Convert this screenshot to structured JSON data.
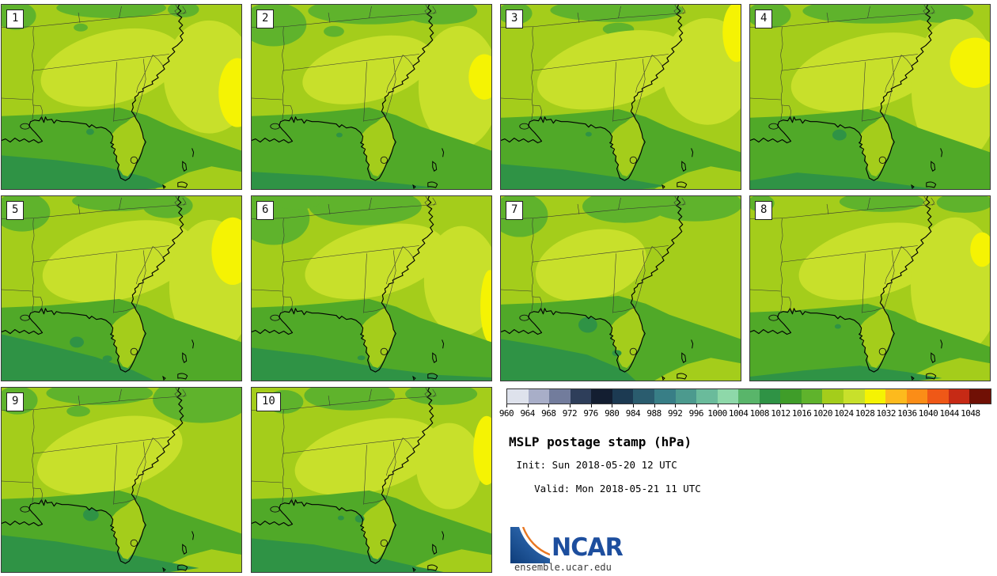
{
  "title_block": {
    "title": "MSLP postage stamp (hPa)",
    "init_line": " Init: Sun 2018-05-20 12 UTC",
    "valid_line": "Valid: Mon 2018-05-21 11 UTC"
  },
  "footer": {
    "logo_text": "NCAR",
    "url": "ensemble.ucar.edu"
  },
  "colorbar": {
    "tick_labels": [
      "960",
      "964",
      "968",
      "972",
      "976",
      "980",
      "984",
      "988",
      "992",
      "996",
      "1000",
      "1004",
      "1008",
      "1012",
      "1016",
      "1020",
      "1024",
      "1028",
      "1032",
      "1036",
      "1040",
      "1044",
      "1048"
    ],
    "segment_colors": [
      "#dee2ec",
      "#a8aec8",
      "#727c9c",
      "#2e3e5a",
      "#131e31",
      "#1c3a52",
      "#2a5c6e",
      "#387e86",
      "#4c9a8e",
      "#6abb9b",
      "#8ed8a9",
      "#59b56a",
      "#2f9345",
      "#3f9d29",
      "#5fb32c",
      "#a4cd1b",
      "#c8e02b",
      "#f5f303",
      "#fdba1d",
      "#fb8d17",
      "#ef5817",
      "#c62a15",
      "#701005"
    ]
  },
  "map_palette": {
    "dominant": "#a4cd1b",
    "light": "#c8e02b",
    "yellow": "#f5f303",
    "grass": "#5fb32c",
    "band": "#50a928",
    "dark": "#2f9345",
    "teal": "#2f9345",
    "coast": "#000000",
    "border_line": "#333333"
  },
  "panels": [
    {
      "number": "1",
      "g": [
        [
          18,
          14,
          26,
          18
        ],
        [
          140,
          4,
          70,
          13
        ],
        [
          101,
          29,
          9,
          5
        ],
        [
          232,
          6,
          20,
          10
        ]
      ],
      "l": [
        [
          140,
          80,
          92,
          46,
          -14
        ],
        [
          265,
          92,
          58,
          72,
          0
        ]
      ],
      "y": [
        [
          301,
          112,
          24,
          44
        ]
      ],
      "bandDy": 0,
      "corner": true,
      "d": [
        [
          0,
          192
        ],
        [
          70,
          198
        ],
        [
          130,
          206
        ],
        [
          185,
          220
        ],
        [
          210,
          232
        ],
        [
          185,
          235
        ],
        [
          0,
          235
        ]
      ],
      "t": [
        [
          113,
          162,
          5,
          4
        ]
      ]
    },
    {
      "number": "2",
      "g": [
        [
          28,
          25,
          42,
          28
        ],
        [
          150,
          8,
          78,
          17
        ],
        [
          105,
          34,
          13,
          7
        ],
        [
          240,
          8,
          48,
          17
        ]
      ],
      "l": [
        [
          148,
          83,
          85,
          40,
          -14
        ],
        [
          265,
          105,
          52,
          78,
          0
        ]
      ],
      "y": [
        [
          297,
          92,
          20,
          29
        ]
      ],
      "bandDy": 0,
      "corner": false,
      "d": [
        [
          0,
          213
        ],
        [
          90,
          218
        ],
        [
          170,
          226
        ],
        [
          235,
          233
        ],
        [
          200,
          235
        ],
        [
          0,
          235
        ]
      ],
      "t": [
        [
          112,
          166,
          4,
          3
        ]
      ]
    },
    {
      "number": "3",
      "g": [
        [
          18,
          11,
          22,
          14
        ],
        [
          148,
          7,
          85,
          15
        ],
        [
          150,
          31,
          20,
          8
        ]
      ],
      "l": [
        [
          142,
          83,
          98,
          46,
          -14
        ],
        [
          264,
          85,
          58,
          68,
          0
        ]
      ],
      "y": [
        [
          301,
          35,
          18,
          38
        ]
      ],
      "bandDy": 2,
      "corner": true,
      "d": [
        [
          0,
          203
        ],
        [
          80,
          210
        ],
        [
          150,
          220
        ],
        [
          210,
          231
        ],
        [
          180,
          235
        ],
        [
          0,
          235
        ]
      ],
      "t": [
        [
          112,
          165,
          4,
          3
        ]
      ]
    },
    {
      "number": "4",
      "g": [
        [
          24,
          13,
          28,
          17
        ],
        [
          155,
          8,
          88,
          16
        ],
        [
          245,
          10,
          40,
          13
        ]
      ],
      "l": [
        [
          148,
          86,
          98,
          46,
          -14
        ],
        [
          262,
          110,
          56,
          92,
          0
        ]
      ],
      "y": [
        [
          287,
          74,
          32,
          32
        ]
      ],
      "bandDy": 2,
      "corner": false,
      "d": [
        [
          0,
          224
        ],
        [
          60,
          214
        ],
        [
          130,
          220
        ],
        [
          200,
          230
        ],
        [
          235,
          235
        ],
        [
          0,
          235
        ]
      ],
      "t": [
        [
          114,
          166,
          9,
          7
        ]
      ]
    },
    {
      "number": "5",
      "g": [
        [
          26,
          20,
          36,
          25
        ],
        [
          148,
          6,
          58,
          13
        ],
        [
          212,
          12,
          32,
          16
        ]
      ],
      "l": [
        [
          150,
          83,
          100,
          48,
          -14
        ],
        [
          268,
          115,
          54,
          85,
          0
        ]
      ],
      "y": [
        [
          295,
          70,
          27,
          43
        ]
      ],
      "bandDy": 0,
      "corner": false,
      "d": [
        [
          0,
          176
        ],
        [
          60,
          190
        ],
        [
          120,
          205
        ],
        [
          168,
          222
        ],
        [
          195,
          235
        ],
        [
          0,
          235
        ]
      ],
      "t": [
        [
          96,
          186,
          9,
          7
        ],
        [
          135,
          207,
          6,
          4
        ]
      ]
    },
    {
      "number": "6",
      "g": [
        [
          28,
          28,
          46,
          34
        ],
        [
          145,
          13,
          72,
          24
        ],
        [
          58,
          6,
          30,
          11
        ]
      ],
      "l": [
        [
          158,
          83,
          92,
          44,
          -14
        ],
        [
          268,
          108,
          48,
          70,
          0
        ]
      ],
      "y": [
        [
          304,
          140,
          12,
          46
        ]
      ],
      "bandDy": 0,
      "corner": false,
      "d": [
        [
          0,
          193
        ],
        [
          80,
          203
        ],
        [
          160,
          218
        ],
        [
          240,
          228
        ],
        [
          306,
          231
        ],
        [
          306,
          235
        ],
        [
          0,
          235
        ]
      ],
      "t": [
        [
          140,
          206,
          5,
          3
        ]
      ]
    },
    {
      "number": "7",
      "g": [
        [
          24,
          24,
          36,
          28
        ],
        [
          158,
          13,
          54,
          21
        ],
        [
          248,
          10,
          60,
          22
        ]
      ],
      "l": [
        [
          115,
          88,
          72,
          44,
          -14
        ]
      ],
      "y": [],
      "bandDy": -4,
      "corner": true,
      "d": [
        [
          0,
          182
        ],
        [
          60,
          192
        ],
        [
          110,
          202
        ],
        [
          158,
          222
        ],
        [
          172,
          235
        ],
        [
          0,
          235
        ]
      ],
      "t": [
        [
          111,
          164,
          12,
          10
        ],
        [
          148,
          200,
          6,
          4
        ]
      ]
    },
    {
      "number": "8",
      "g": [
        [
          14,
          9,
          17,
          11
        ],
        [
          168,
          7,
          54,
          13
        ],
        [
          274,
          8,
          36,
          13
        ]
      ],
      "l": [
        [
          155,
          83,
          95,
          45,
          -14
        ],
        [
          262,
          115,
          57,
          88,
          0
        ]
      ],
      "y": [
        [
          296,
          68,
          15,
          22
        ]
      ],
      "bandDy": 6,
      "corner": true,
      "d": [
        [
          0,
          230
        ],
        [
          70,
          222
        ],
        [
          140,
          216
        ],
        [
          200,
          224
        ],
        [
          245,
          232
        ],
        [
          215,
          235
        ],
        [
          0,
          235
        ]
      ],
      "t": [
        [
          112,
          166,
          4,
          3
        ]
      ]
    },
    {
      "number": "9",
      "g": [
        [
          20,
          16,
          26,
          18
        ],
        [
          125,
          7,
          68,
          15
        ],
        [
          98,
          30,
          15,
          7
        ],
        [
          255,
          15,
          62,
          30
        ]
      ],
      "l": [
        [
          138,
          86,
          95,
          46,
          -14
        ]
      ],
      "y": [
        [
          305,
          202,
          7,
          11
        ]
      ],
      "bandDy": 0,
      "corner": true,
      "d": [
        [
          0,
          188
        ],
        [
          70,
          196
        ],
        [
          140,
          208
        ],
        [
          200,
          220
        ],
        [
          252,
          230
        ],
        [
          215,
          235
        ],
        [
          0,
          235
        ]
      ],
      "t": [
        [
          114,
          162,
          10,
          8
        ]
      ]
    },
    {
      "number": "10",
      "g": [
        [
          42,
          18,
          24,
          15
        ],
        [
          125,
          10,
          58,
          19
        ],
        [
          242,
          8,
          46,
          14
        ]
      ],
      "l": [
        [
          148,
          88,
          95,
          45,
          -14
        ],
        [
          252,
          100,
          42,
          55,
          0
        ]
      ],
      "y": [
        [
          300,
          80,
          17,
          44
        ]
      ],
      "bandDy": 0,
      "corner": true,
      "d": [
        [
          0,
          192
        ],
        [
          80,
          200
        ],
        [
          150,
          214
        ],
        [
          210,
          228
        ],
        [
          245,
          235
        ],
        [
          0,
          235
        ]
      ],
      "t": [
        [
          138,
          167,
          6,
          5
        ],
        [
          114,
          166,
          4,
          3
        ]
      ]
    }
  ]
}
